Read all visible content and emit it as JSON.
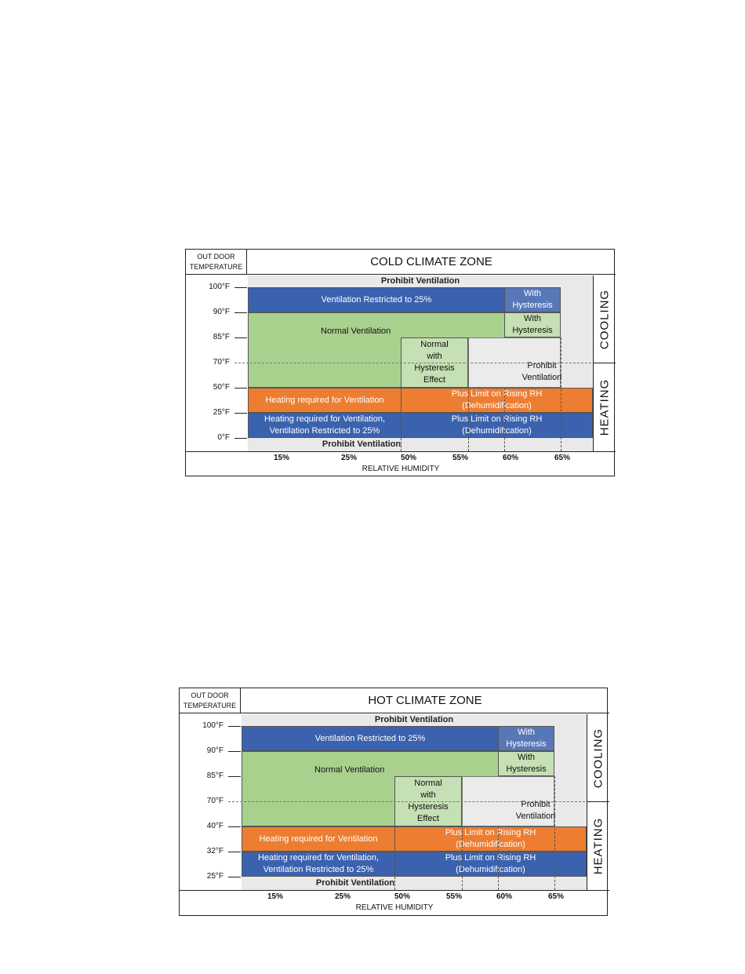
{
  "charts": [
    {
      "title": "COLD CLIMATE ZONE",
      "y_axis_header": [
        "OUT DOOR",
        "TEMPERATURE"
      ],
      "y_ticks": [
        "100°F",
        "90°F",
        "85°F",
        "70°F",
        "50°F",
        "25°F",
        "0°F"
      ],
      "x_ticks": [
        "15%",
        "25%",
        "50%",
        "55%",
        "60%",
        "65%"
      ],
      "x_axis_title": "RELATIVE HUMIDITY",
      "side_labels": {
        "cooling": "COOLING",
        "heating": "HEATING"
      },
      "zones": {
        "prohibit_top": "Prohibit Ventilation",
        "restricted": "Ventilation Restricted to 25%",
        "with_hysteresis_top": "With Hysteresis",
        "with_hysteresis_mid": "With Hysteresis",
        "normal": "Normal Ventilation",
        "normal_hysteresis": "Normal with Hysteresis Effect",
        "prohibit_mid": "Prohibit Ventilation",
        "heating_required": "Heating required for Ventilation",
        "plus_limit_1": "Plus Limit on Rising RH (Dehumidification)",
        "heating_restricted": "Heating required for Ventilation, Ventilation Restricted to 25%",
        "plus_limit_2": "Plus Limit on Rising RH (Dehumidification)",
        "prohibit_bottom": "Prohibit Ventilation"
      }
    },
    {
      "title": "HOT CLIMATE ZONE",
      "y_axis_header": [
        "OUT DOOR",
        "TEMPERATURE"
      ],
      "y_ticks": [
        "100°F",
        "90°F",
        "85°F",
        "70°F",
        "40°F",
        "32°F",
        "25°F"
      ],
      "x_ticks": [
        "15%",
        "25%",
        "50%",
        "55%",
        "60%",
        "65%"
      ],
      "x_axis_title": "RELATIVE HUMIDITY",
      "side_labels": {
        "cooling": "COOLING",
        "heating": "HEATING"
      },
      "zones": {
        "prohibit_top": "Prohibit Ventilation",
        "restricted": "Ventilation Restricted to 25%",
        "with_hysteresis_top": "With Hysteresis",
        "with_hysteresis_mid": "With Hysteresis",
        "normal": "Normal Ventilation",
        "normal_hysteresis": "Normal with Hysteresis Effect",
        "prohibit_mid": "Prohibit Ventilation",
        "heating_required": "Heating required for Ventilation",
        "plus_limit_1": "Plus Limit on Rising RH (Dehumidification)",
        "heating_restricted": "Heating required for Ventilation, Ventilation Restricted to 25%",
        "plus_limit_2": "Plus Limit on Rising RH (Dehumidification)",
        "prohibit_bottom": "Prohibit Ventilation"
      }
    }
  ]
}
